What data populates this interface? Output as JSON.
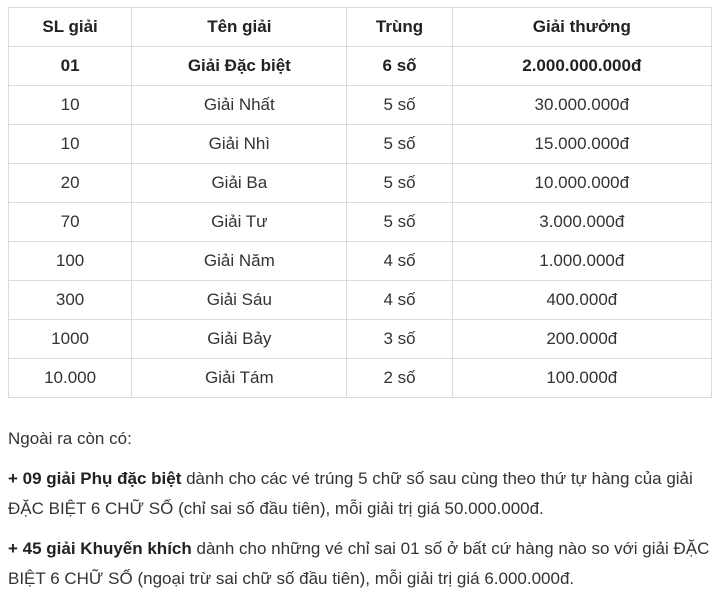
{
  "table": {
    "headers": [
      "SL giải",
      "Tên giải",
      "Trùng",
      "Giải thưởng"
    ],
    "rows": [
      [
        "01",
        "Giải Đặc biệt",
        "6 số",
        "2.000.000.000đ"
      ],
      [
        "10",
        "Giải Nhất",
        "5 số",
        "30.000.000đ"
      ],
      [
        "10",
        "Giải Nhì",
        "5 số",
        "15.000.000đ"
      ],
      [
        "20",
        "Giải Ba",
        "5 số",
        "10.000.000đ"
      ],
      [
        "70",
        "Giải Tư",
        "5 số",
        "3.000.000đ"
      ],
      [
        "100",
        "Giải Năm",
        "4 số",
        "1.000.000đ"
      ],
      [
        "300",
        "Giải Sáu",
        "4 số",
        "400.000đ"
      ],
      [
        "1000",
        "Giải Bảy",
        "3 số",
        "200.000đ"
      ],
      [
        "10.000",
        "Giải Tám",
        "2 số",
        "100.000đ"
      ]
    ]
  },
  "notes": {
    "intro": "Ngoài ra còn có:",
    "items": [
      {
        "bold": "+ 09 giải Phụ đặc biệt",
        "text": " dành cho các vé trúng 5 chữ số sau cùng theo thứ tự hàng của giải ĐẶC BIỆT 6 CHỮ SỐ (chỉ sai số đầu tiên), mỗi giải trị giá 50.000.000đ."
      },
      {
        "bold": "+ 45 giải Khuyến khích",
        "text": " dành cho những vé chỉ sai 01 số ở bất cứ hàng nào so với giải ĐẶC BIỆT 6 CHỮ SỐ (ngoại trừ sai chữ số đầu tiên), mỗi giải trị giá 6.000.000đ."
      }
    ]
  }
}
